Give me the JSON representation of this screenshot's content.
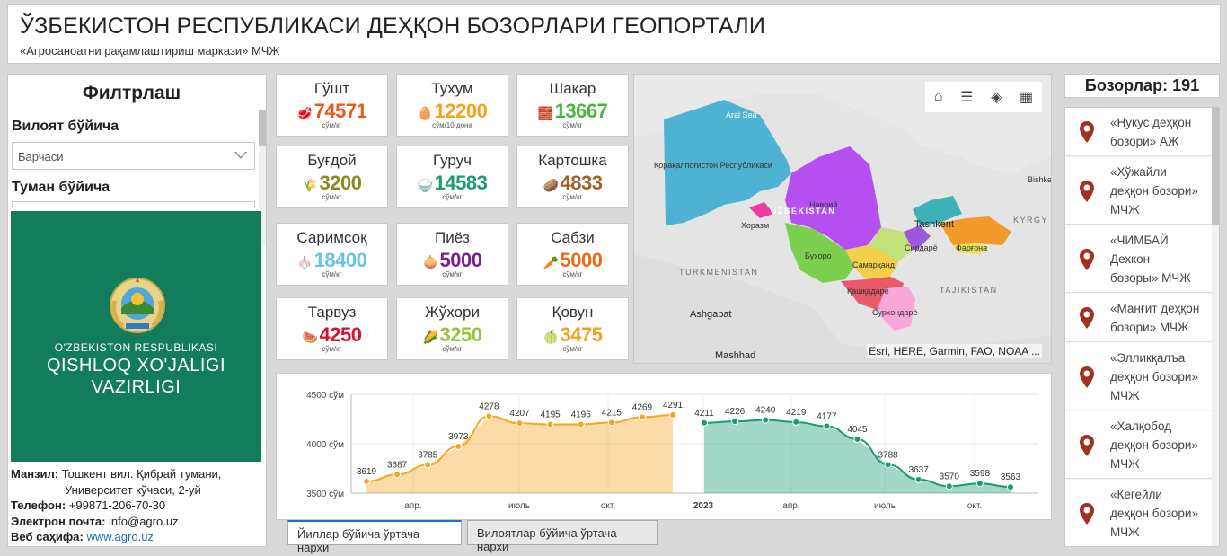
{
  "header": {
    "title": "ЎЗБЕКИСТОН РЕСПУБЛИКАСИ ДЕҲҚОН БОЗОРЛАРИ ГЕОПОРТАЛИ",
    "subtitle": "«Агросаноатни рақамлаштириш маркази» МЧЖ"
  },
  "filter": {
    "title": "Филтрлаш",
    "region_label": "Вилоят бўйича",
    "region_value": "Барчаси",
    "district_label": "Туман бўйича"
  },
  "logo": {
    "line1": "O'ZBEKISTON RESPUBLIKASI",
    "line2": "QISHLOQ XO'JALIGI",
    "line3": "VAZIRLIGI"
  },
  "contact": {
    "address_label": "Манзил:",
    "address_value": "Тошкент вил. Қибрай тумани,",
    "address_value2": "Университет кўчаси, 2-уй",
    "phone_label": "Телефон:",
    "phone_value": "+99871-206-70-30",
    "email_label": "Электрон почта:",
    "email_value": "info@agro.uz",
    "web_label": "Веб саҳифа:",
    "web_value": "www.agro.uz"
  },
  "products": [
    {
      "name": "Гўшт",
      "price": "74571",
      "unit": "сўм/кг",
      "color": "#e85a1c",
      "icon": "🥩"
    },
    {
      "name": "Тухум",
      "price": "12200",
      "unit": "сўм/10 дона",
      "color": "#f1a51a",
      "icon": "🥚"
    },
    {
      "name": "Шакар",
      "price": "13667",
      "unit": "сўм/кг",
      "color": "#47b83a",
      "icon": "🧱"
    },
    {
      "name": "Буғдой",
      "price": "3200",
      "unit": "сўм/кг",
      "color": "#8a8a1d",
      "icon": "🌾"
    },
    {
      "name": "Гуруч",
      "price": "14583",
      "unit": "сўм/кг",
      "color": "#1e9b6d",
      "icon": "🍚"
    },
    {
      "name": "Картошка",
      "price": "4833",
      "unit": "сўм/кг",
      "color": "#a0612b",
      "icon": "🥔"
    },
    {
      "name": "Саримсоқ",
      "price": "18400",
      "unit": "сўм/кг",
      "color": "#69c1e3",
      "icon": "🧄"
    },
    {
      "name": "Пиёз",
      "price": "5000",
      "unit": "сўм/кг",
      "color": "#7b1f8e",
      "icon": "🧅"
    },
    {
      "name": "Сабзи",
      "price": "5000",
      "unit": "сўм/кг",
      "color": "#ec6a14",
      "icon": "🥕"
    },
    {
      "name": "Тарвуз",
      "price": "4250",
      "unit": "сўм/кг",
      "color": "#d6132b",
      "icon": "🍉"
    },
    {
      "name": "Жўхори",
      "price": "3250",
      "unit": "сўм/кг",
      "color": "#9ac33c",
      "icon": "🌽"
    },
    {
      "name": "Қовун",
      "price": "3475",
      "unit": "сўм/кг",
      "color": "#f2a11e",
      "icon": "🍈"
    }
  ],
  "map": {
    "labels": [
      "Қорақалпоғистон Республикаси",
      "Навоий",
      "Хоразм",
      "Бухоро",
      "Самарқанд",
      "Сирдарё",
      "Фарғона",
      "Қашқадарё",
      "Сурхондарё",
      "Tashkent",
      "Ashgabat",
      "Mashhad",
      "Bishke",
      "Aral Sea"
    ],
    "country_labels": [
      "UZBEKISTAN",
      "TURKMENISTAN",
      "TAJIKISTAN",
      "KYRGY"
    ],
    "attribution": "Esri, HERE, Garmin, FAO, NOAA ..."
  },
  "chart_data": {
    "type": "area",
    "y_ticks": [
      "4500 сўм",
      "4000 сўм",
      "3500 сўм"
    ],
    "ylim": [
      3500,
      4500
    ],
    "x_ticks": [
      "апр.",
      "июль",
      "окт.",
      "2023",
      "апр.",
      "июль",
      "окт."
    ],
    "series": [
      {
        "values": [
          3619,
          3687,
          3785,
          3973,
          4278,
          4207,
          4195,
          4196,
          4215,
          4269,
          4291
        ],
        "color": "#f5a623"
      },
      {
        "values": [
          4211,
          4226,
          4240,
          4219,
          4177,
          4045,
          3788,
          3637,
          3570,
          3598,
          3563
        ],
        "color": "#1a9a75"
      }
    ]
  },
  "tabs": {
    "tab1": "Йиллар бўйича ўртача нархи",
    "tab2": "Вилоятлар бўйича ўртача нархи"
  },
  "markets": {
    "title": "Бозорлар: 191",
    "items": [
      {
        "line1": "«Нукус деҳқон",
        "line2": "бозори» АЖ",
        "line3": ""
      },
      {
        "line1": "«Хўжайли",
        "line2": "деҳқон бозори»",
        "line3": "МЧЖ"
      },
      {
        "line1": "«ЧИМБАЙ",
        "line2": "Дехкон",
        "line3": "бозоры» МЧЖ"
      },
      {
        "line1": "«Манғит деҳқон",
        "line2": "бозори» МЧЖ",
        "line3": ""
      },
      {
        "line1": "«Элликқалъа",
        "line2": "деҳқон бозори»",
        "line3": "МЧЖ"
      },
      {
        "line1": "«Халқобод",
        "line2": "деҳқон бозори»",
        "line3": "МЧЖ"
      },
      {
        "line1": "«Кегейли",
        "line2": "деҳқон бозори»",
        "line3": "МЧЖ"
      }
    ]
  }
}
